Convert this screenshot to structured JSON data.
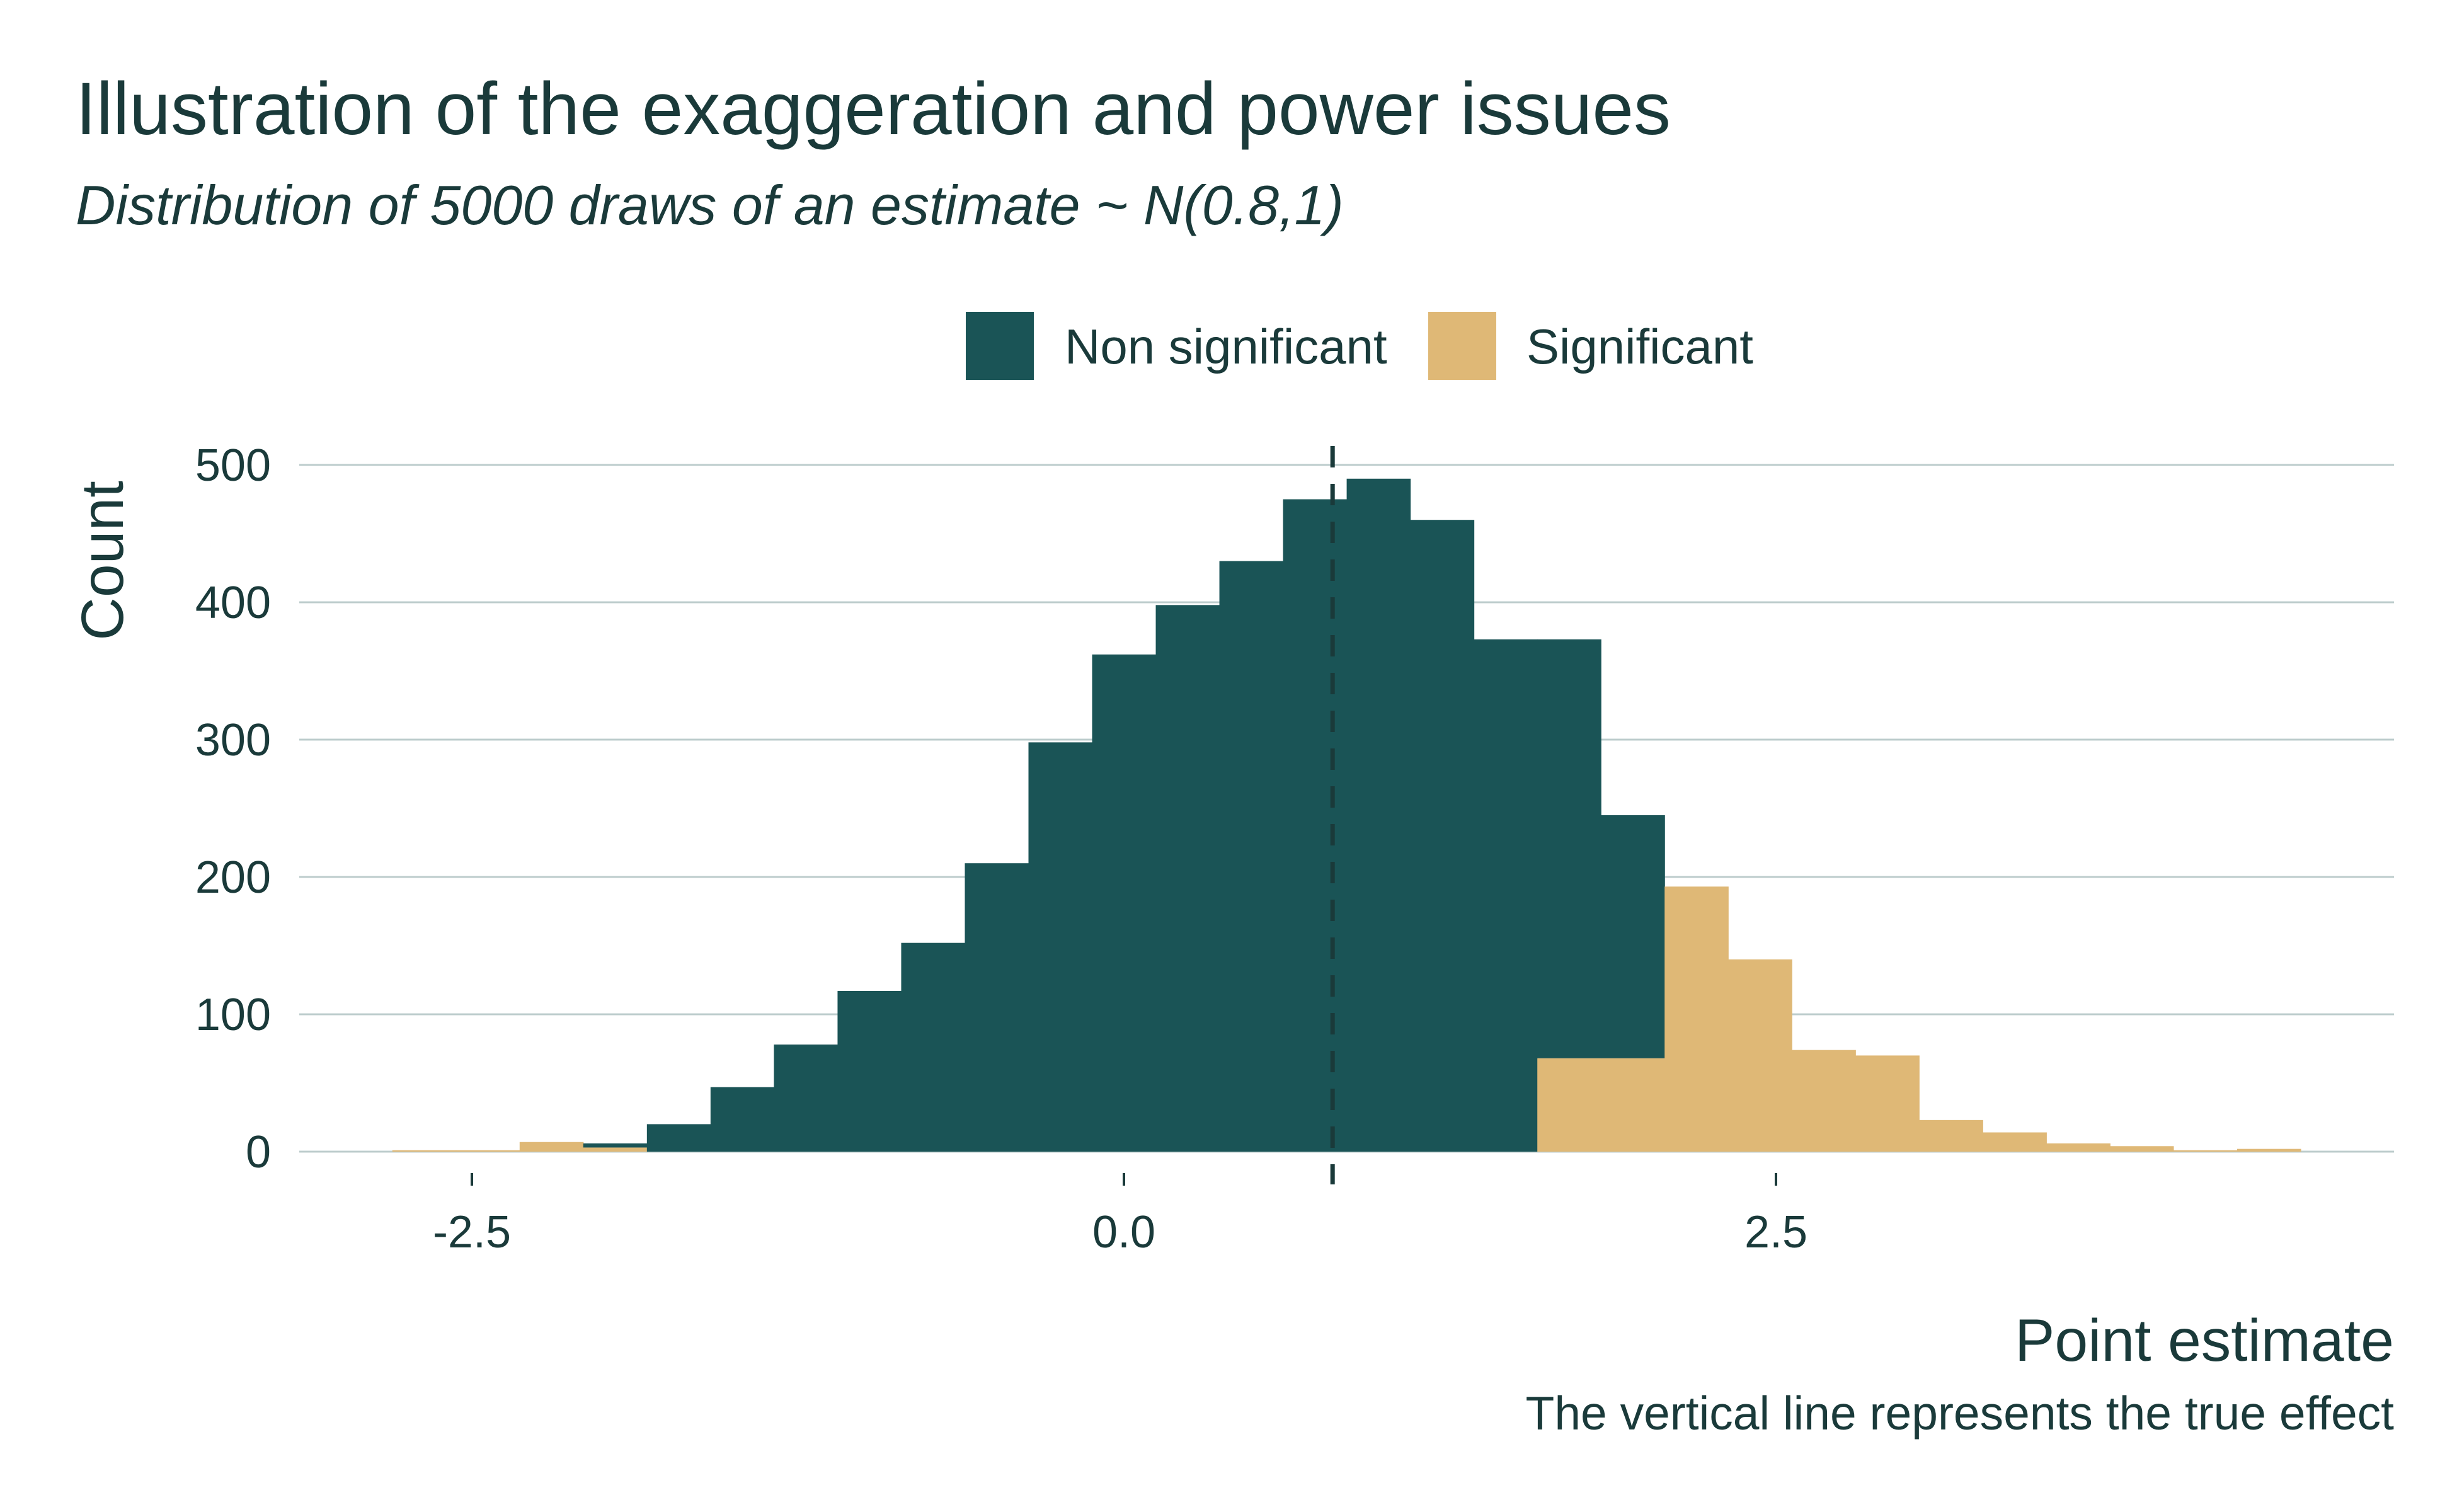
{
  "chart_data": {
    "type": "bar",
    "subtype": "stacked-histogram",
    "title": "Illustration of the exaggeration and power issues",
    "subtitle": "Distribution of 5000 draws of an estimate ~ N(0.8,1)",
    "xlabel": "Point estimate",
    "ylabel": "Count",
    "caption": "The vertical line represents the true effect",
    "xlim": [
      -3.2,
      4.9
    ],
    "ylim": [
      0,
      500
    ],
    "x_ticks": [
      -2.5,
      0.0,
      2.5
    ],
    "x_tick_labels": [
      "-2.5",
      "0.0",
      "2.5"
    ],
    "y_ticks": [
      0,
      100,
      200,
      300,
      400,
      500
    ],
    "y_tick_labels": [
      "0",
      "100",
      "200",
      "300",
      "400",
      "500"
    ],
    "bin_width": 0.2439,
    "bin_centers": [
      -2.683,
      -2.439,
      -2.195,
      -1.951,
      -1.707,
      -1.463,
      -1.22,
      -0.976,
      -0.732,
      -0.488,
      -0.244,
      0.0,
      0.244,
      0.488,
      0.732,
      0.976,
      1.22,
      1.463,
      1.707,
      1.951,
      2.195,
      2.439,
      2.683,
      2.927,
      3.171,
      3.415,
      3.659,
      3.902,
      4.146,
      4.39
    ],
    "vline": {
      "x": 0.8,
      "style": "dashed",
      "color": "#1a3a3a"
    },
    "grid": "horizontal",
    "legend_position": "top",
    "series": [
      {
        "name": "Non significant",
        "color": "#1a5456",
        "values": [
          0,
          0,
          0,
          3,
          20,
          47,
          78,
          117,
          152,
          210,
          298,
          362,
          398,
          430,
          475,
          490,
          460,
          373,
          305,
          177,
          0,
          0,
          0,
          0,
          0,
          0,
          0,
          0,
          0,
          0
        ]
      },
      {
        "name": "Significant",
        "color": "#dfb876",
        "values": [
          1,
          1,
          7,
          3,
          0,
          0,
          0,
          0,
          0,
          0,
          0,
          0,
          0,
          0,
          0,
          0,
          0,
          0,
          68,
          68,
          193,
          140,
          74,
          70,
          23,
          14,
          6,
          4,
          1,
          2
        ]
      }
    ]
  }
}
